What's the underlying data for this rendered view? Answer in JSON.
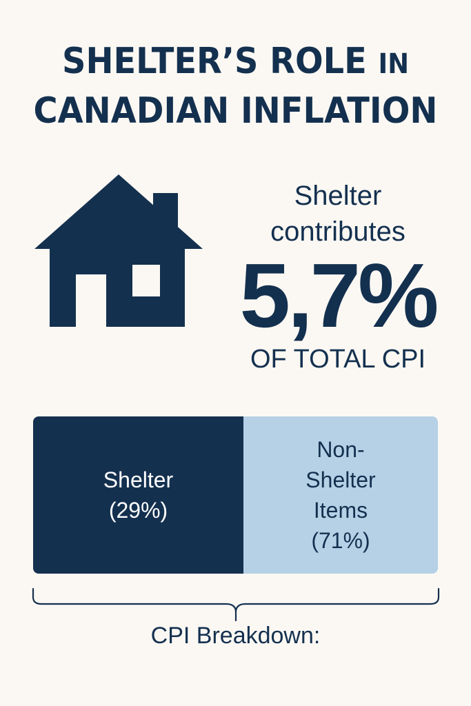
{
  "title": {
    "line1_main": "SHELTER’S ROLE",
    "line1_small": "IN",
    "line2": "CANADIAN INFLATION"
  },
  "icon": "house-icon",
  "stat": {
    "lead_line1": "Shelter",
    "lead_line2": "contributes",
    "value": "5,7%",
    "sub": "OF TOTAL CPI"
  },
  "chart_data": {
    "type": "bar",
    "categories": [
      "Shelter",
      "Non-Shelter Items"
    ],
    "values": [
      29,
      71
    ],
    "unit": "%",
    "labels": [
      {
        "line1": "Shelter",
        "line2": "(29%)"
      },
      {
        "line1": "Non-",
        "line2": "Shelter",
        "line3": "Items",
        "line4": "(71%)"
      }
    ],
    "colors": [
      "#14304f",
      "#b6d1e6"
    ],
    "caption": "CPI Breakdown:"
  },
  "colors": {
    "background": "#fbf8f3",
    "primary": "#14304f",
    "accent": "#b6d1e6"
  }
}
